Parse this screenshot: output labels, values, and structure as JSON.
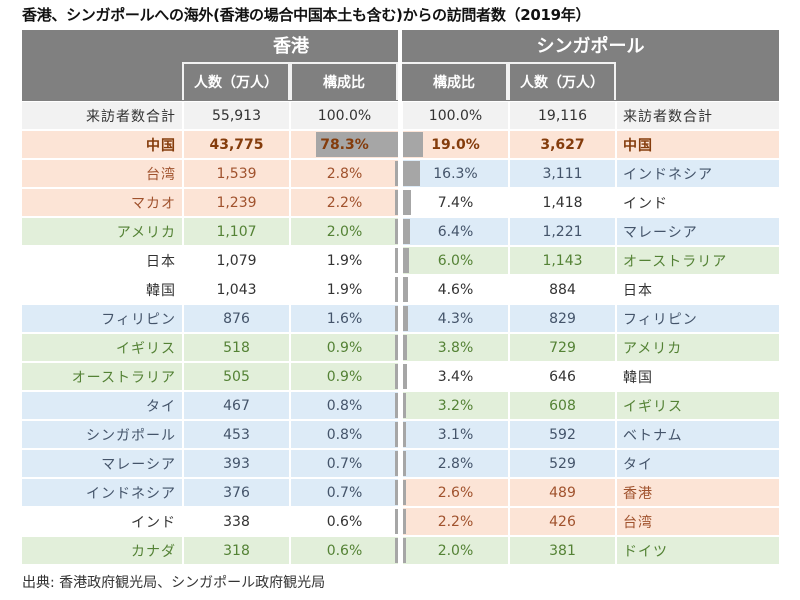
{
  "title": "香港、シンガポールへの海外(香港の場合中国本土も含む)からの訪問者数（2019年）",
  "headers": {
    "hk_title": "香港",
    "sg_title": "シンガポール",
    "hk_count": "人数（万人）",
    "hk_ratio": "構成比",
    "sg_ratio": "構成比",
    "sg_count": "人数（万人）"
  },
  "colors": {
    "header_bg": "#808080",
    "total_bg": "#f2f2f2",
    "china_bg": "#fce4d6",
    "china_text": "#843c0c",
    "asia_bg": "#fce4d6",
    "asia_text": "#a0522d",
    "sea_bg": "#ddebf7",
    "sea_text": "#44546a",
    "west_bg": "#e2efda",
    "west_text": "#548235",
    "none_bg": "#ffffff",
    "none_text": "#333333",
    "bar": "#a6a6a6"
  },
  "hk_rows": [
    {
      "label": "来訪者数合計",
      "count": "55,913",
      "ratio": "100.0%",
      "ratio_value": 100.0,
      "group": "total"
    },
    {
      "label": "中国",
      "count": "43,775",
      "ratio": "78.3%",
      "ratio_value": 78.3,
      "group": "china"
    },
    {
      "label": "台湾",
      "count": "1,539",
      "ratio": "2.8%",
      "ratio_value": 2.8,
      "group": "asia"
    },
    {
      "label": "マカオ",
      "count": "1,239",
      "ratio": "2.2%",
      "ratio_value": 2.2,
      "group": "asia"
    },
    {
      "label": "アメリカ",
      "count": "1,107",
      "ratio": "2.0%",
      "ratio_value": 2.0,
      "group": "west"
    },
    {
      "label": "日本",
      "count": "1,079",
      "ratio": "1.9%",
      "ratio_value": 1.9,
      "group": "none"
    },
    {
      "label": "韓国",
      "count": "1,043",
      "ratio": "1.9%",
      "ratio_value": 1.9,
      "group": "none"
    },
    {
      "label": "フィリピン",
      "count": "876",
      "ratio": "1.6%",
      "ratio_value": 1.6,
      "group": "sea"
    },
    {
      "label": "イギリス",
      "count": "518",
      "ratio": "0.9%",
      "ratio_value": 0.9,
      "group": "west"
    },
    {
      "label": "オーストラリア",
      "count": "505",
      "ratio": "0.9%",
      "ratio_value": 0.9,
      "group": "west"
    },
    {
      "label": "タイ",
      "count": "467",
      "ratio": "0.8%",
      "ratio_value": 0.8,
      "group": "sea"
    },
    {
      "label": "シンガポール",
      "count": "453",
      "ratio": "0.8%",
      "ratio_value": 0.8,
      "group": "sea"
    },
    {
      "label": "マレーシア",
      "count": "393",
      "ratio": "0.7%",
      "ratio_value": 0.7,
      "group": "sea"
    },
    {
      "label": "インドネシア",
      "count": "376",
      "ratio": "0.7%",
      "ratio_value": 0.7,
      "group": "sea"
    },
    {
      "label": "インド",
      "count": "338",
      "ratio": "0.6%",
      "ratio_value": 0.6,
      "group": "none"
    },
    {
      "label": "カナダ",
      "count": "318",
      "ratio": "0.6%",
      "ratio_value": 0.6,
      "group": "west"
    }
  ],
  "sg_rows": [
    {
      "label": "来訪者数合計",
      "count": "19,116",
      "ratio": "100.0%",
      "ratio_value": 100.0,
      "group": "total"
    },
    {
      "label": "中国",
      "count": "3,627",
      "ratio": "19.0%",
      "ratio_value": 19.0,
      "group": "china"
    },
    {
      "label": "インドネシア",
      "count": "3,111",
      "ratio": "16.3%",
      "ratio_value": 16.3,
      "group": "sea"
    },
    {
      "label": "インド",
      "count": "1,418",
      "ratio": "7.4%",
      "ratio_value": 7.4,
      "group": "none"
    },
    {
      "label": "マレーシア",
      "count": "1,221",
      "ratio": "6.4%",
      "ratio_value": 6.4,
      "group": "sea"
    },
    {
      "label": "オーストラリア",
      "count": "1,143",
      "ratio": "6.0%",
      "ratio_value": 6.0,
      "group": "west"
    },
    {
      "label": "日本",
      "count": "884",
      "ratio": "4.6%",
      "ratio_value": 4.6,
      "group": "none"
    },
    {
      "label": "フィリピン",
      "count": "829",
      "ratio": "4.3%",
      "ratio_value": 4.3,
      "group": "sea"
    },
    {
      "label": "アメリカ",
      "count": "729",
      "ratio": "3.8%",
      "ratio_value": 3.8,
      "group": "west"
    },
    {
      "label": "韓国",
      "count": "646",
      "ratio": "3.4%",
      "ratio_value": 3.4,
      "group": "none"
    },
    {
      "label": "イギリス",
      "count": "608",
      "ratio": "3.2%",
      "ratio_value": 3.2,
      "group": "west"
    },
    {
      "label": "ベトナム",
      "count": "592",
      "ratio": "3.1%",
      "ratio_value": 3.1,
      "group": "sea"
    },
    {
      "label": "タイ",
      "count": "529",
      "ratio": "2.8%",
      "ratio_value": 2.8,
      "group": "sea"
    },
    {
      "label": "香港",
      "count": "489",
      "ratio": "2.6%",
      "ratio_value": 2.6,
      "group": "asia"
    },
    {
      "label": "台湾",
      "count": "426",
      "ratio": "2.2%",
      "ratio_value": 2.2,
      "group": "asia"
    },
    {
      "label": "ドイツ",
      "count": "381",
      "ratio": "2.0%",
      "ratio_value": 2.0,
      "group": "west"
    }
  ],
  "footer": "出典: 香港政府観光局、シンガポール政府観光局"
}
